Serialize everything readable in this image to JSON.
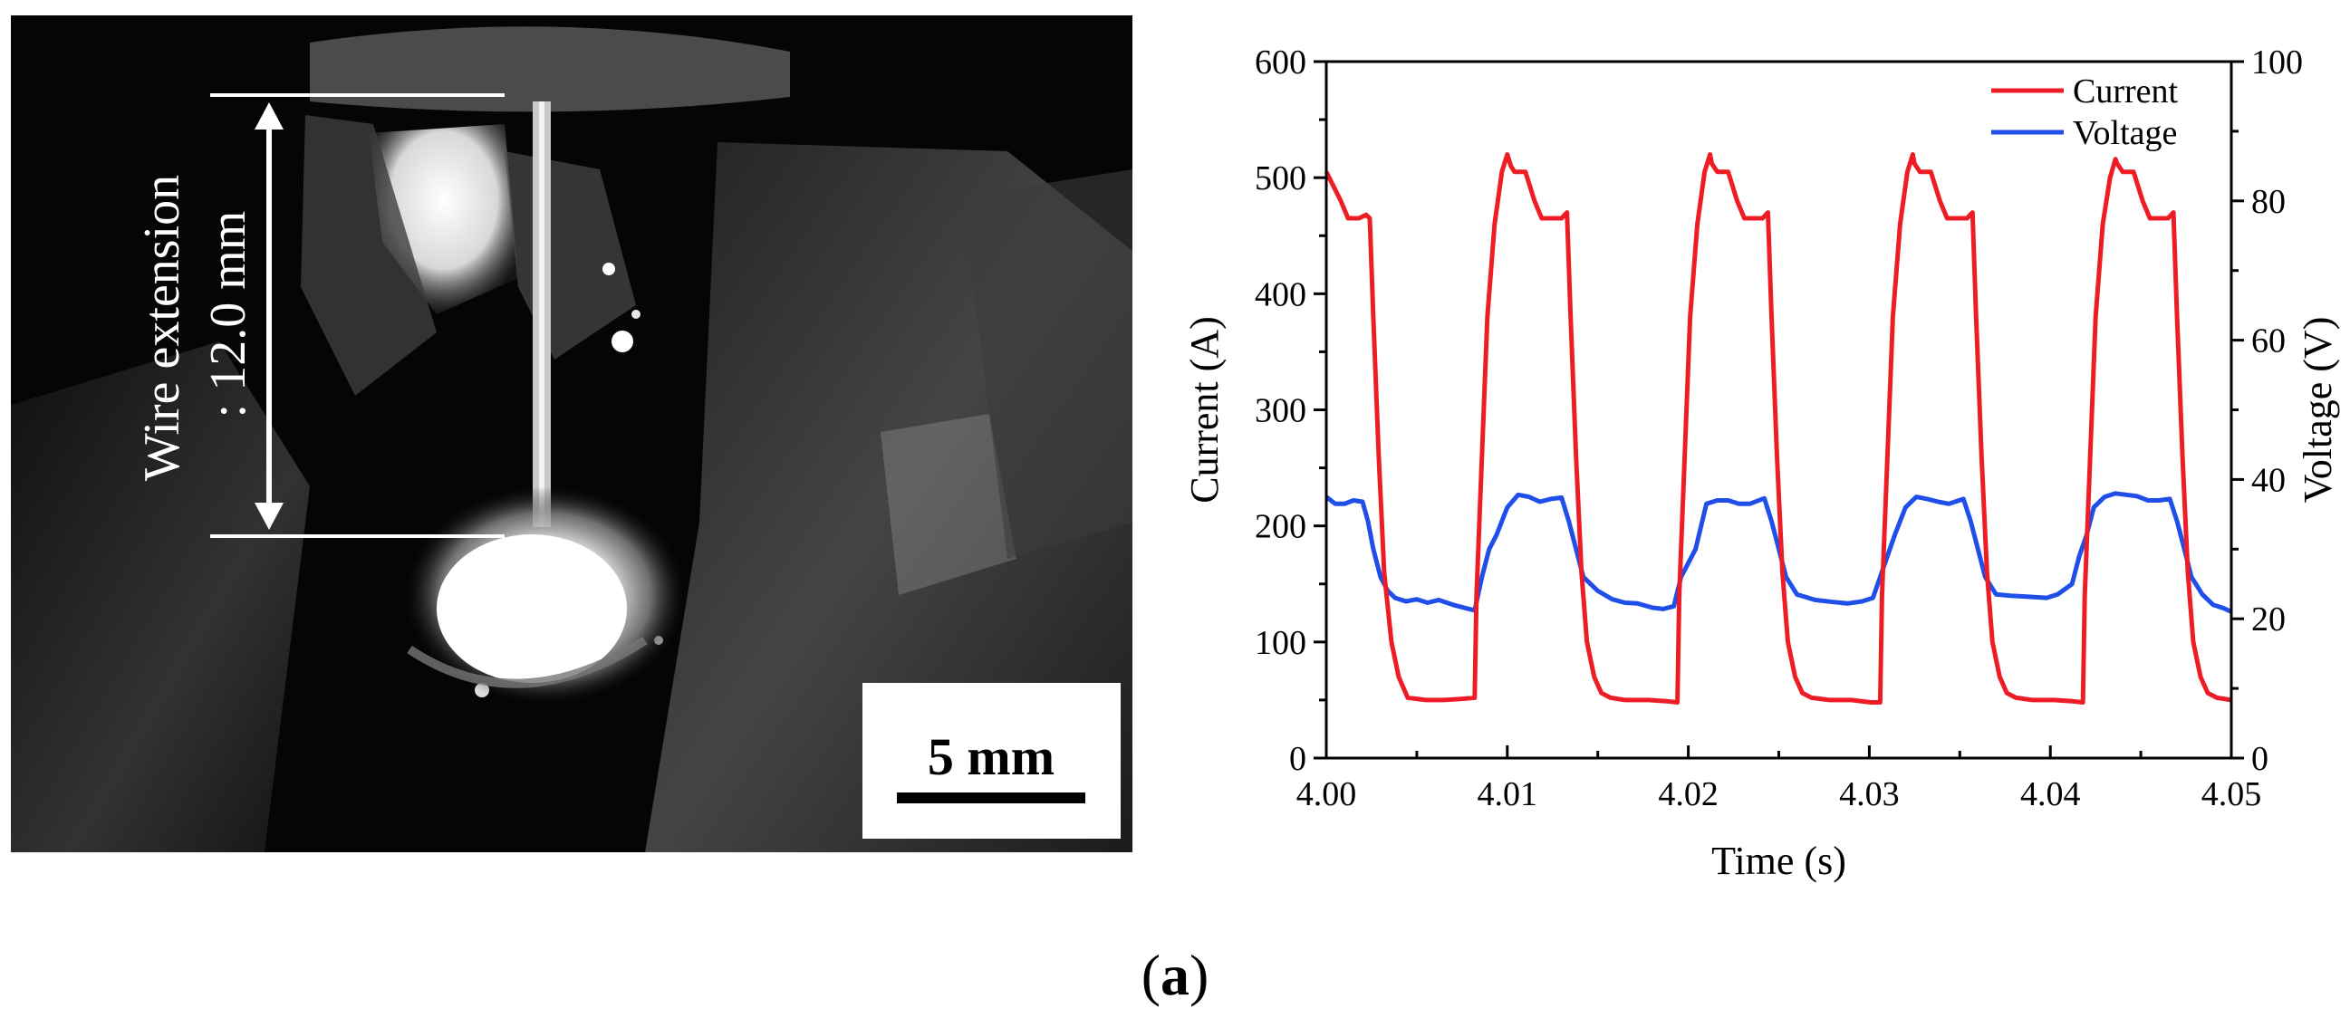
{
  "photo": {
    "annotation_line1": "Wire extension",
    "annotation_line2": ": 12.0 mm",
    "scale_bar_label": "5 mm"
  },
  "caption": {
    "open": "(",
    "letter": "a",
    "close": ")"
  },
  "colors": {
    "current": "#ee1c25",
    "voltage": "#1f4fe8"
  },
  "chart_data": {
    "type": "line",
    "title": "",
    "xlabel": "Time (s)",
    "ylabel_left": "Current (A)",
    "ylabel_right": "Voltage (V)",
    "xlim": [
      4.0,
      4.05
    ],
    "ylim_left": [
      0,
      600
    ],
    "ylim_right": [
      0,
      100
    ],
    "x_ticks": [
      "4.00",
      "4.01",
      "4.02",
      "4.03",
      "4.04",
      "4.05"
    ],
    "y_left_ticks": [
      "0",
      "100",
      "200",
      "300",
      "400",
      "500",
      "600"
    ],
    "y_right_ticks": [
      "0",
      "20",
      "40",
      "60",
      "80",
      "100"
    ],
    "legend": [
      "Current",
      "Voltage"
    ],
    "legend_position": "top-right",
    "series": [
      {
        "name": "Current",
        "axis": "left",
        "x": [
          4.0,
          4.0008,
          4.0012,
          4.0015,
          4.0018,
          4.0022,
          4.0024,
          4.0026,
          4.0029,
          4.0032,
          4.0036,
          4.004,
          4.0045,
          4.0055,
          4.0065,
          4.0075,
          4.0082,
          4.0083,
          4.0086,
          4.0089,
          4.0093,
          4.0097,
          4.01,
          4.0102,
          4.0104,
          4.011,
          4.0115,
          4.0119,
          4.0122,
          4.013,
          4.0133,
          4.0135,
          4.0138,
          4.0141,
          4.0144,
          4.0148,
          4.0152,
          4.0157,
          4.0165,
          4.0178,
          4.0188,
          4.0194,
          4.0195,
          4.0198,
          4.0201,
          4.0205,
          4.0209,
          4.0212,
          4.0213,
          4.0216,
          4.0222,
          4.0227,
          4.0231,
          4.0234,
          4.0241,
          4.0244,
          4.0246,
          4.0249,
          4.0252,
          4.0255,
          4.0259,
          4.0263,
          4.0268,
          4.0278,
          4.029,
          4.0301,
          4.0306,
          4.0307,
          4.031,
          4.0313,
          4.0317,
          4.0321,
          4.0324,
          4.0325,
          4.0328,
          4.0334,
          4.0339,
          4.0343,
          4.0346,
          4.0354,
          4.0357,
          4.0359,
          4.0362,
          4.0365,
          4.0368,
          4.0372,
          4.0376,
          4.0381,
          4.039,
          4.0402,
          4.0412,
          4.0418,
          4.0419,
          4.0422,
          4.0425,
          4.0429,
          4.0433,
          4.0436,
          4.0437,
          4.044,
          4.0446,
          4.0451,
          4.0455,
          4.0458,
          4.0465,
          4.0468,
          4.047,
          4.0473,
          4.0476,
          4.0479,
          4.0483,
          4.0487,
          4.0492,
          4.05
        ],
        "values": [
          505,
          480,
          465,
          465,
          465,
          468,
          465,
          380,
          260,
          160,
          100,
          70,
          52,
          50,
          50,
          51,
          52,
          140,
          260,
          380,
          460,
          505,
          520,
          510,
          505,
          505,
          480,
          465,
          465,
          465,
          470,
          380,
          260,
          160,
          100,
          70,
          56,
          52,
          50,
          50,
          49,
          48,
          140,
          260,
          380,
          460,
          505,
          520,
          512,
          505,
          505,
          480,
          465,
          465,
          465,
          470,
          380,
          260,
          160,
          100,
          70,
          56,
          52,
          50,
          50,
          48,
          48,
          140,
          260,
          380,
          460,
          505,
          520,
          512,
          505,
          505,
          480,
          465,
          465,
          465,
          470,
          380,
          260,
          160,
          100,
          70,
          56,
          52,
          50,
          50,
          49,
          48,
          140,
          260,
          380,
          460,
          500,
          516,
          512,
          505,
          505,
          480,
          465,
          465,
          465,
          470,
          380,
          260,
          160,
          100,
          70,
          56,
          52,
          50
        ]
      },
      {
        "name": "Voltage",
        "axis": "right",
        "x": [
          4.0,
          4.0005,
          4.001,
          4.0015,
          4.002,
          4.0023,
          4.0026,
          4.003,
          4.0034,
          4.0038,
          4.0044,
          4.005,
          4.0056,
          4.0062,
          4.007,
          4.0076,
          4.0082,
          4.0086,
          4.009,
          4.0094,
          4.01,
          4.0106,
          4.0112,
          4.0118,
          4.0124,
          4.013,
          4.0134,
          4.0138,
          4.0142,
          4.015,
          4.0158,
          4.0165,
          4.0172,
          4.018,
          4.0186,
          4.0192,
          4.0196,
          4.02,
          4.0204,
          4.021,
          4.0216,
          4.0222,
          4.0228,
          4.0234,
          4.0242,
          4.0246,
          4.025,
          4.0254,
          4.026,
          4.027,
          4.028,
          4.0288,
          4.0296,
          4.0302,
          4.0306,
          4.031,
          4.0314,
          4.032,
          4.0326,
          4.0332,
          4.0338,
          4.0344,
          4.0352,
          4.0356,
          4.036,
          4.0364,
          4.037,
          4.0378,
          4.0386,
          4.0392,
          4.0398,
          4.0404,
          4.0412,
          4.0416,
          4.042,
          4.0424,
          4.043,
          4.0436,
          4.0442,
          4.0448,
          4.0454,
          4.046,
          4.0466,
          4.047,
          4.0474,
          4.0478,
          4.0484,
          4.049,
          4.0496,
          4.05
        ],
        "values": [
          37.5,
          36.5,
          36.5,
          37,
          36.8,
          34,
          30,
          26,
          24,
          23,
          22.5,
          22.8,
          22.3,
          22.7,
          22,
          21.6,
          21.2,
          26,
          30,
          32,
          36,
          37.8,
          37.5,
          36.8,
          37.2,
          37.4,
          34,
          30,
          26,
          24,
          22.8,
          22.3,
          22.2,
          21.6,
          21.4,
          21.8,
          26,
          28,
          30,
          36.5,
          37,
          37,
          36.5,
          36.5,
          37.3,
          34,
          30,
          26,
          23.5,
          22.7,
          22.4,
          22.2,
          22.5,
          23,
          26,
          29,
          32,
          36,
          37.5,
          37.2,
          36.8,
          36.5,
          37.2,
          34,
          30,
          26,
          23.5,
          23.3,
          23.2,
          23.1,
          23,
          23.5,
          25,
          29,
          32,
          36,
          37.5,
          38,
          37.8,
          37.6,
          37,
          37,
          37.2,
          34,
          30,
          26,
          23.5,
          22,
          21.5,
          21
        ]
      }
    ]
  }
}
